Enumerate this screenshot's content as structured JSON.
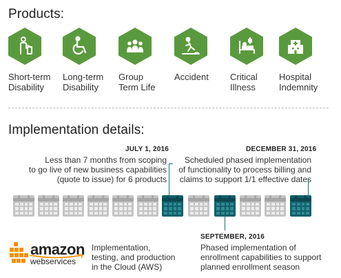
{
  "products_heading": "Products:",
  "implementation_heading": "Implementation details:",
  "products": [
    {
      "label": "Short-term\nDisability",
      "icon": "person-cast-icon",
      "color": "#5a9a3e"
    },
    {
      "label": "Long-term\nDisability",
      "icon": "wheelchair-icon",
      "color": "#5a9a3e"
    },
    {
      "label": "Group\nTerm Life",
      "icon": "group-icon",
      "color": "#5a9a3e"
    },
    {
      "label": "Accident",
      "icon": "slip-accident-icon",
      "color": "#5a9a3e"
    },
    {
      "label": "Critical\nIllness",
      "icon": "hospital-bed-icon",
      "color": "#5a9a3e"
    },
    {
      "label": "Hospital\nIndemnity",
      "icon": "hospital-building-icon",
      "color": "#5a9a3e"
    }
  ],
  "milestones": {
    "july": {
      "date": "JULY 1, 2016",
      "description": "Less than 7 months from scoping\nto go live of new business capabilities\n(quote to issue) for 6 products"
    },
    "december": {
      "date": "DECEMBER 31, 2016",
      "description": "Scheduled phased implementation\nof functionality to process billing and\nclaims to support 1/1 effective dates"
    },
    "september": {
      "date": "SEPTEMBER, 2016",
      "description": "Phased implementation of\nenrollment capabilities to support\nplanned enrollment season"
    }
  },
  "calendar": {
    "months": 12,
    "highlighted": [
      6,
      9,
      12
    ],
    "colors": {
      "highlight": "#11606b",
      "inactive": "#c4c4c4",
      "accent": "#5a9a3e"
    }
  },
  "aws": {
    "logo_word": "amazon",
    "logo_sub": "webservices",
    "logo_color": "#f29100",
    "description": "Implementation,\ntesting, and production\nin the Cloud (AWS)"
  }
}
